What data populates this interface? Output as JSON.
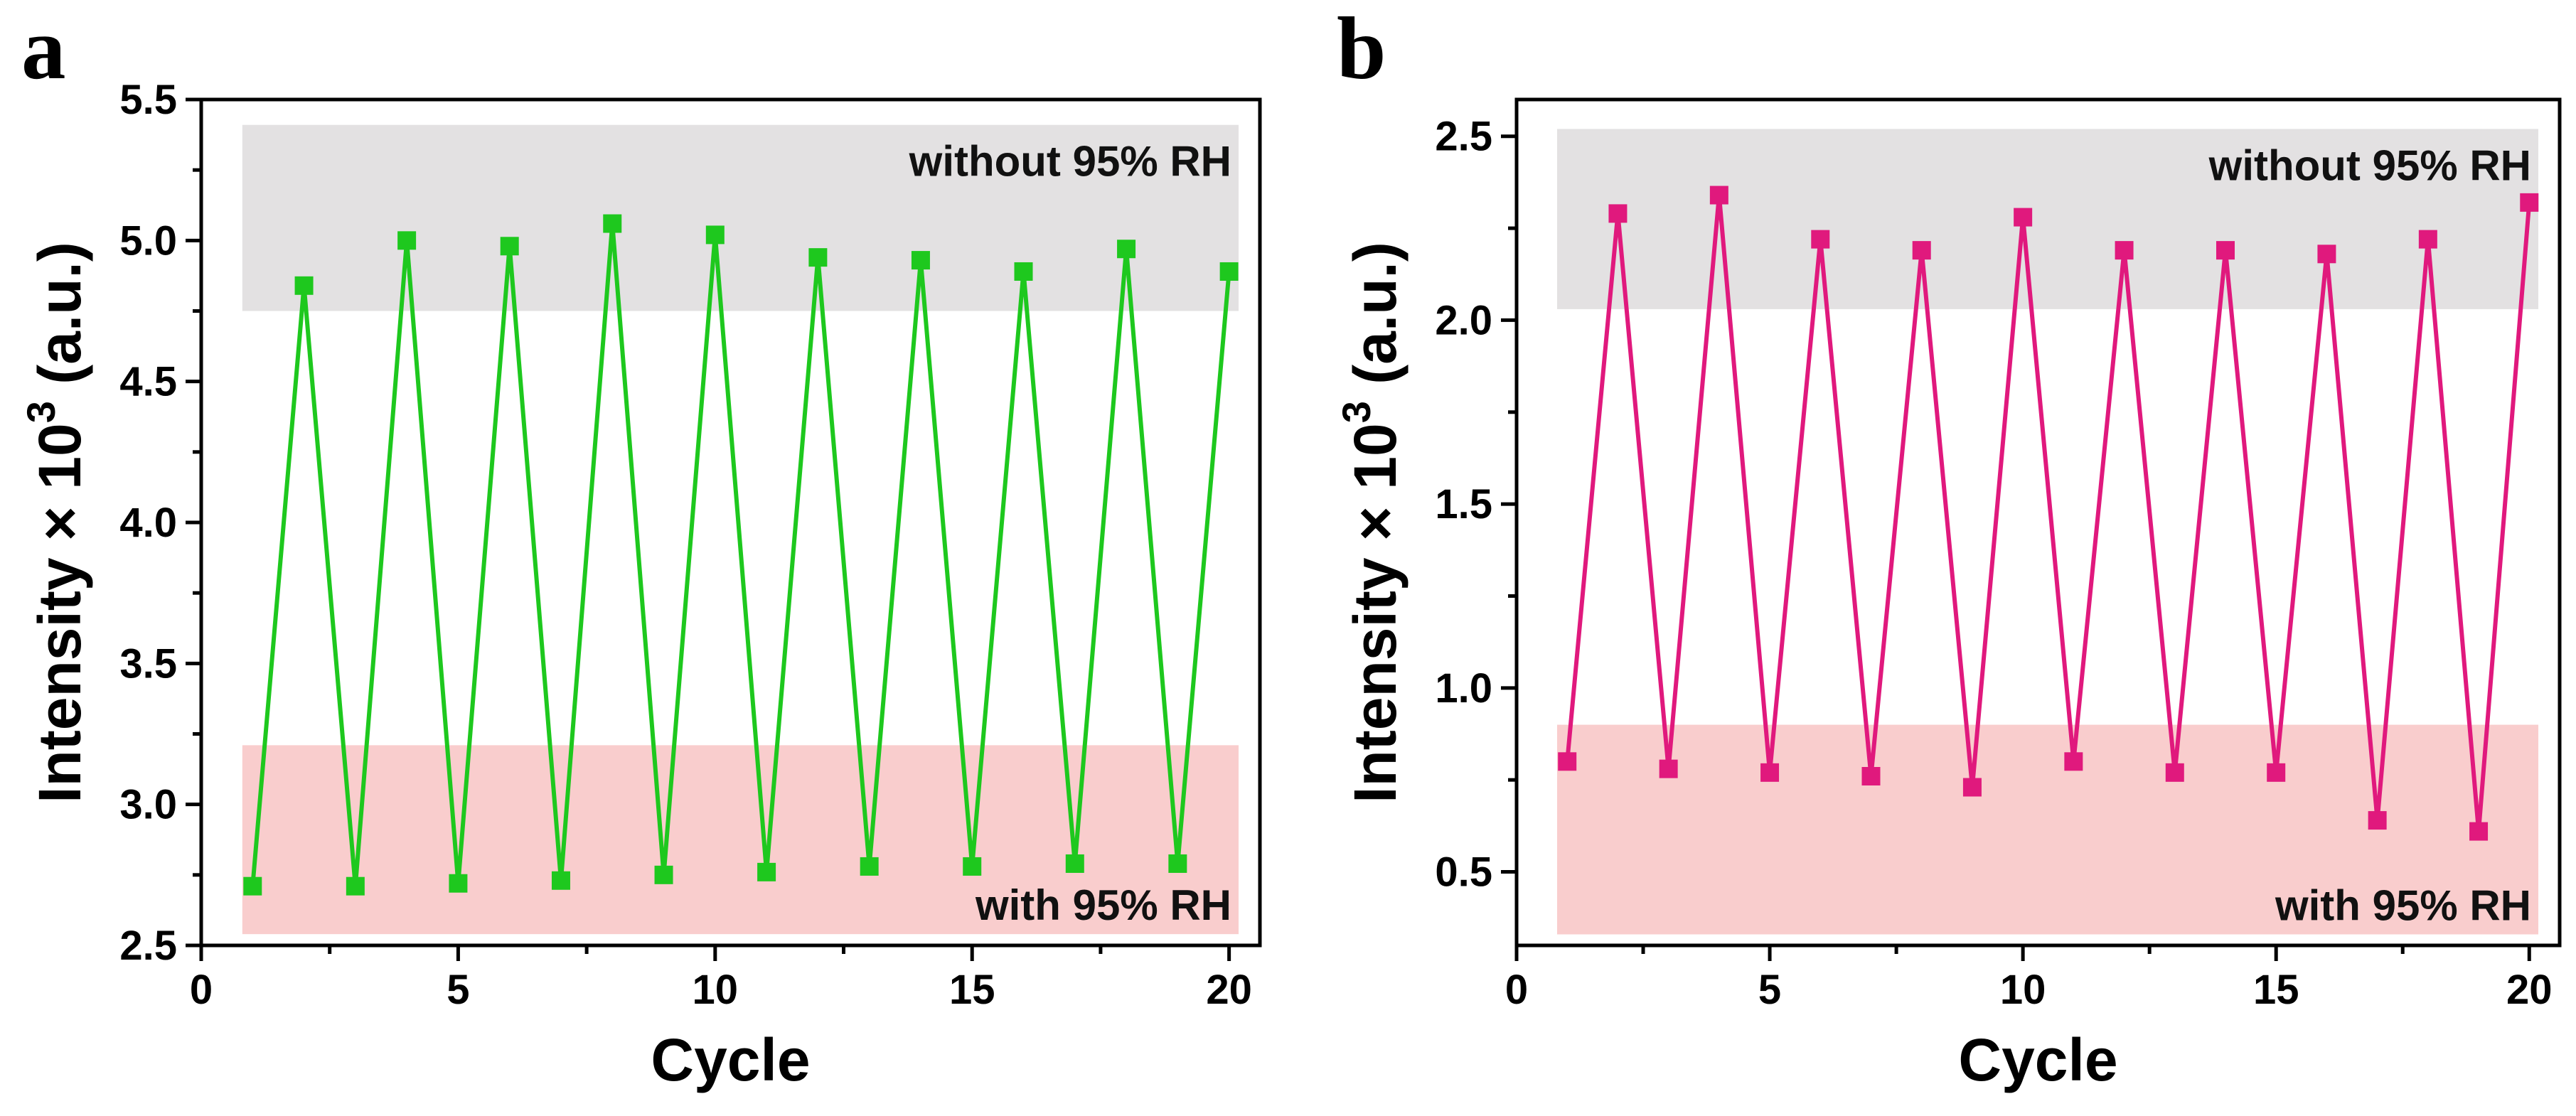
{
  "chart_data": [
    {
      "type": "line",
      "panel_label": "a",
      "xlabel": "Cycle",
      "ylabel": "Intensity × 10",
      "ylabel_superscript": "3",
      "ylabel_suffix": " (a.u.)",
      "xlim": [
        0,
        20.6
      ],
      "ylim": [
        2.5,
        5.5
      ],
      "xticks": [
        "0",
        "5",
        "10",
        "15",
        "20"
      ],
      "yticks": [
        "2.5",
        "3.0",
        "3.5",
        "4.0",
        "4.5",
        "5.0",
        "5.5"
      ],
      "color": "#1ec81e",
      "bands": [
        {
          "label": "without 95% RH",
          "y_range": [
            4.75,
            5.41
          ],
          "color": "#e3e1e2"
        },
        {
          "label": "with 95% RH",
          "y_range": [
            2.54,
            3.21
          ],
          "color": "#f9cdcd"
        }
      ],
      "series": [
        {
          "name": "intensity",
          "x": [
            1,
            2,
            3,
            4,
            5,
            6,
            7,
            8,
            9,
            10,
            11,
            12,
            13,
            14,
            15,
            16,
            17,
            18,
            19,
            20
          ],
          "values": [
            2.71,
            4.84,
            2.71,
            5.0,
            2.72,
            4.98,
            2.73,
            5.06,
            2.75,
            5.02,
            2.76,
            4.94,
            2.78,
            4.93,
            2.78,
            4.89,
            2.79,
            4.97,
            2.79,
            4.89
          ]
        }
      ]
    },
    {
      "type": "line",
      "panel_label": "b",
      "xlabel": "Cycle",
      "ylabel": "Intensity × 10",
      "ylabel_superscript": "3",
      "ylabel_suffix": " (a.u.)",
      "xlim": [
        0,
        20.6
      ],
      "ylim": [
        0.3,
        2.6
      ],
      "xticks": [
        "0",
        "5",
        "10",
        "15",
        "20"
      ],
      "yticks": [
        "0.5",
        "1.0",
        "1.5",
        "2.0",
        "2.5"
      ],
      "color": "#e0197d",
      "bands": [
        {
          "label": "without 95% RH",
          "y_range": [
            2.03,
            2.52
          ],
          "color": "#e3e1e2"
        },
        {
          "label": "with 95% RH",
          "y_range": [
            0.33,
            0.9
          ],
          "color": "#f9cdcd"
        }
      ],
      "series": [
        {
          "name": "intensity",
          "x": [
            1,
            2,
            3,
            4,
            5,
            6,
            7,
            8,
            9,
            10,
            11,
            12,
            13,
            14,
            15,
            16,
            17,
            18,
            19,
            20
          ],
          "values": [
            0.8,
            2.29,
            0.78,
            2.34,
            0.77,
            2.22,
            0.76,
            2.19,
            0.73,
            2.28,
            0.8,
            2.19,
            0.77,
            2.19,
            0.77,
            2.18,
            0.64,
            2.22,
            0.61,
            2.32
          ]
        }
      ]
    }
  ]
}
